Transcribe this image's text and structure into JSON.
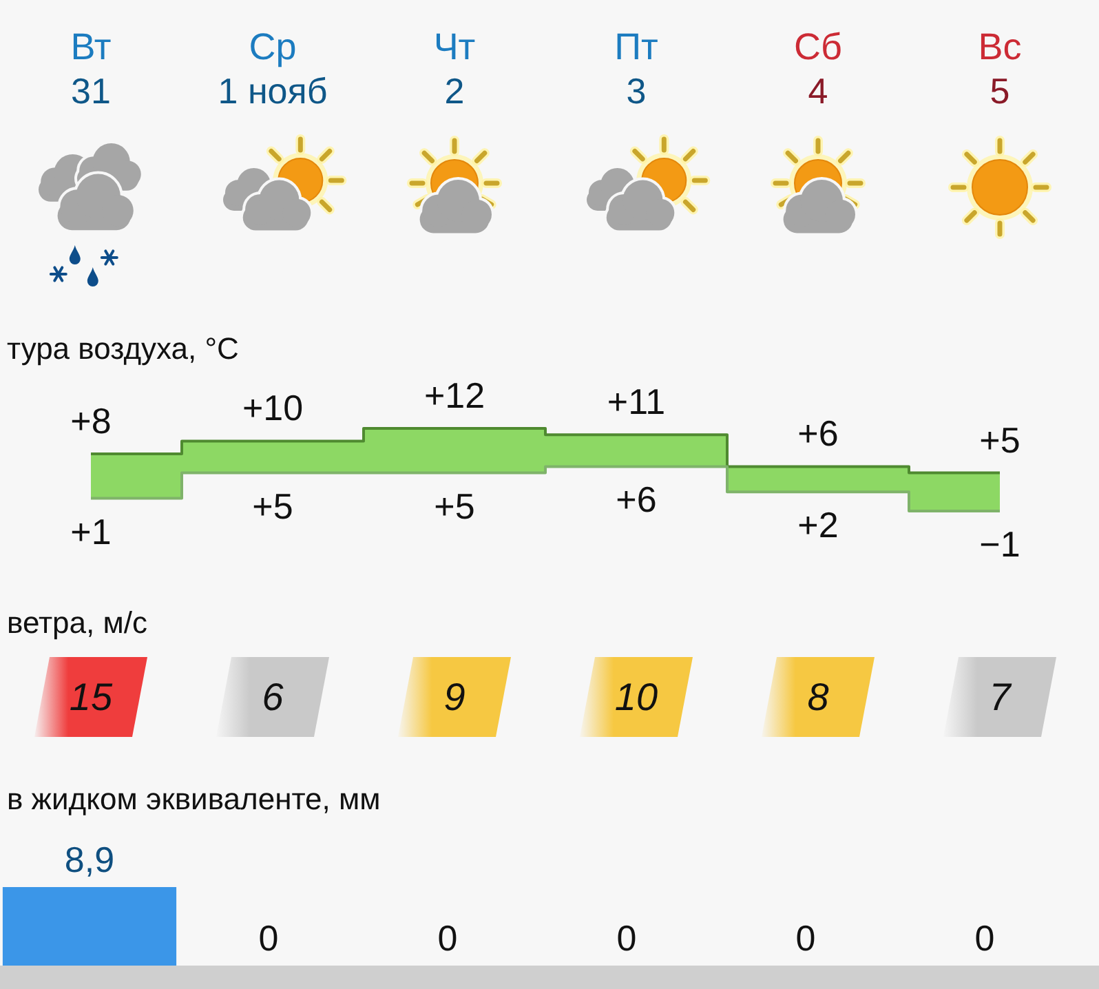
{
  "chart_data": [
    {
      "type": "step",
      "title": "тура воздуха, °C",
      "categories": [
        "Вт\n31",
        "Ср\n1 нояб",
        "Чт\n2",
        "Пт\n3",
        "Сб\n4",
        "Вс\n5"
      ],
      "tick_labels": "x",
      "series": [
        {
          "color": "#4f8a30",
          "values": [
            8,
            10,
            12,
            11,
            6,
            5
          ],
          "value_labels": [
            "+8",
            "+10",
            "+12",
            "+11",
            "+6",
            "+5"
          ],
          "lower": [
            1,
            5,
            5,
            6,
            2,
            -1
          ],
          "upper": [
            8,
            10,
            12,
            11,
            6,
            5
          ]
        },
        {
          "color": "#7fb36a",
          "values": [
            1,
            5,
            5,
            6,
            2,
            -1
          ],
          "value_labels": [
            "+1",
            "+5",
            "+5",
            "+6",
            "+2",
            "−1"
          ]
        }
      ]
    },
    {
      "type": "other",
      "title": "ветра, м/с",
      "values": [
        15,
        6,
        9,
        10,
        8,
        7
      ],
      "colors": [
        "#ef3d3d",
        "#c9c9c9",
        "#f6c842",
        "#f6c842",
        "#f6c842",
        "#c9c9c9"
      ],
      "data_labels": true
    },
    {
      "type": "bar",
      "title": "в жидком эквиваленте, мм",
      "categories": [
        null,
        null,
        null,
        null,
        null,
        null
      ],
      "values": [
        8.9,
        0,
        0,
        0,
        0,
        0
      ],
      "value_labels": [
        "8,9",
        "0",
        "0",
        "0",
        "0",
        "0"
      ],
      "color": "#3b96e8"
    }
  ]
}
